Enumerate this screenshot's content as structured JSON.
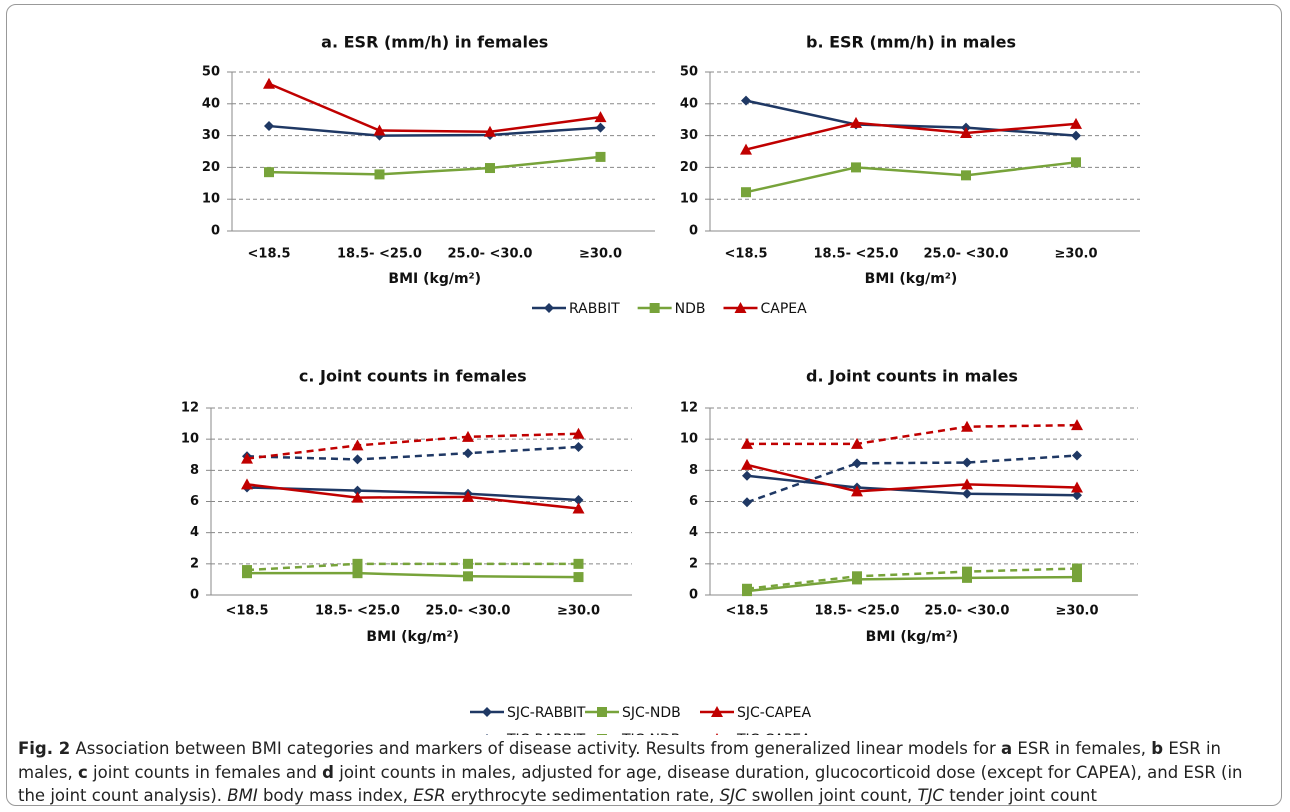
{
  "chart_data": [
    {
      "type": "line",
      "title": "a. ESR (mm/h) in females",
      "xlabel": "BMI (kg/m²)",
      "categories": [
        "<18.5",
        "18.5- <25.0",
        "25.0- <30.0",
        "≥30.0"
      ],
      "ylim": [
        0,
        50
      ],
      "yticks": [
        0,
        10,
        20,
        30,
        40,
        50
      ],
      "grid": true,
      "legend": "bottom",
      "series": [
        {
          "name": "RABBIT",
          "color": "#1f3864",
          "marker": "diamond",
          "dash": false,
          "values": [
            33,
            30,
            30.2,
            32.5
          ]
        },
        {
          "name": "NDB",
          "color": "#77a33a",
          "marker": "square",
          "dash": false,
          "values": [
            18.5,
            17.8,
            19.8,
            23.3
          ]
        },
        {
          "name": "CAPEA",
          "color": "#c00000",
          "marker": "triangle",
          "dash": false,
          "values": [
            46.3,
            31.6,
            31.2,
            35.8
          ]
        }
      ]
    },
    {
      "type": "line",
      "title": "b. ESR (mm/h) in males",
      "xlabel": "BMI (kg/m²)",
      "categories": [
        "<18.5",
        "18.5- <25.0",
        "25.0- <30.0",
        "≥30.0"
      ],
      "ylim": [
        0,
        50
      ],
      "yticks": [
        0,
        10,
        20,
        30,
        40,
        50
      ],
      "grid": true,
      "series": [
        {
          "name": "RABBIT",
          "color": "#1f3864",
          "marker": "diamond",
          "dash": false,
          "values": [
            41,
            33.5,
            32.5,
            30
          ]
        },
        {
          "name": "NDB",
          "color": "#77a33a",
          "marker": "square",
          "dash": false,
          "values": [
            12.2,
            20,
            17.5,
            21.6
          ]
        },
        {
          "name": "CAPEA",
          "color": "#c00000",
          "marker": "triangle",
          "dash": false,
          "values": [
            25.6,
            34,
            30.8,
            33.7
          ]
        }
      ]
    },
    {
      "type": "line",
      "title": "c. Joint counts in females",
      "xlabel": "BMI (kg/m²)",
      "categories": [
        "<18.5",
        "18.5- <25.0",
        "25.0- <30.0",
        "≥30.0"
      ],
      "ylim": [
        0,
        12
      ],
      "yticks": [
        0,
        2,
        4,
        6,
        8,
        10,
        12
      ],
      "grid": true,
      "legend": "bottom",
      "series": [
        {
          "name": "SJC-RABBIT",
          "color": "#1f3864",
          "marker": "diamond",
          "dash": false,
          "values": [
            6.9,
            6.7,
            6.5,
            6.1
          ]
        },
        {
          "name": "SJC-NDB",
          "color": "#77a33a",
          "marker": "square",
          "dash": false,
          "values": [
            1.4,
            1.4,
            1.2,
            1.15
          ]
        },
        {
          "name": "SJC-CAPEA",
          "color": "#c00000",
          "marker": "triangle",
          "dash": false,
          "values": [
            7.1,
            6.25,
            6.3,
            5.55
          ]
        },
        {
          "name": "TJC-RABBIT",
          "color": "#1f3864",
          "marker": "diamond",
          "dash": true,
          "values": [
            8.9,
            8.7,
            9.1,
            9.5
          ]
        },
        {
          "name": "TJC-NDB",
          "color": "#77a33a",
          "marker": "square",
          "dash": true,
          "values": [
            1.6,
            2.0,
            2.0,
            2.0
          ]
        },
        {
          "name": "TJC-CAPEA",
          "color": "#c00000",
          "marker": "triangle",
          "dash": true,
          "values": [
            8.75,
            9.6,
            10.15,
            10.35
          ]
        }
      ]
    },
    {
      "type": "line",
      "title": "d. Joint counts in males",
      "xlabel": "BMI (kg/m²)",
      "categories": [
        "<18.5",
        "18.5- <25.0",
        "25.0- <30.0",
        "≥30.0"
      ],
      "ylim": [
        0,
        12
      ],
      "yticks": [
        0,
        2,
        4,
        6,
        8,
        10,
        12
      ],
      "grid": true,
      "series": [
        {
          "name": "SJC-RABBIT",
          "color": "#1f3864",
          "marker": "diamond",
          "dash": false,
          "values": [
            7.65,
            6.9,
            6.5,
            6.4
          ]
        },
        {
          "name": "SJC-NDB",
          "color": "#77a33a",
          "marker": "square",
          "dash": false,
          "values": [
            0.25,
            1.0,
            1.1,
            1.15
          ]
        },
        {
          "name": "SJC-CAPEA",
          "color": "#c00000",
          "marker": "triangle",
          "dash": false,
          "values": [
            8.35,
            6.65,
            7.1,
            6.9
          ]
        },
        {
          "name": "TJC-RABBIT",
          "color": "#1f3864",
          "marker": "diamond",
          "dash": true,
          "values": [
            5.95,
            8.45,
            8.5,
            8.95
          ]
        },
        {
          "name": "TJC-NDB",
          "color": "#77a33a",
          "marker": "square",
          "dash": true,
          "values": [
            0.4,
            1.2,
            1.5,
            1.7
          ]
        },
        {
          "name": "TJC-CAPEA",
          "color": "#c00000",
          "marker": "triangle",
          "dash": true,
          "values": [
            9.7,
            9.7,
            10.8,
            10.9
          ]
        }
      ]
    }
  ],
  "caption": {
    "segments": [
      {
        "text": "Fig. 2",
        "style": "bold"
      },
      {
        "text": " Association between BMI categories and markers of disease activity. Results from generalized linear models for ",
        "style": "normal"
      },
      {
        "text": "a",
        "style": "bold"
      },
      {
        "text": " ESR in females, ",
        "style": "normal"
      },
      {
        "text": "b",
        "style": "bold"
      },
      {
        "text": " ESR in males, ",
        "style": "normal"
      },
      {
        "text": "c",
        "style": "bold"
      },
      {
        "text": " joint counts in females and ",
        "style": "normal"
      },
      {
        "text": "d",
        "style": "bold"
      },
      {
        "text": " joint counts in males, adjusted for age, disease duration, glucocorticoid dose (except for CAPEA), and ESR (in the joint count analysis). ",
        "style": "normal"
      },
      {
        "text": "BMI",
        "style": "italic"
      },
      {
        "text": " body mass index, ",
        "style": "normal"
      },
      {
        "text": "ESR",
        "style": "italic"
      },
      {
        "text": " erythrocyte sedimentation rate, ",
        "style": "normal"
      },
      {
        "text": "SJC",
        "style": "italic"
      },
      {
        "text": " swollen joint count, ",
        "style": "normal"
      },
      {
        "text": "TJC",
        "style": "italic"
      },
      {
        "text": " tender joint count",
        "style": "normal"
      }
    ]
  }
}
